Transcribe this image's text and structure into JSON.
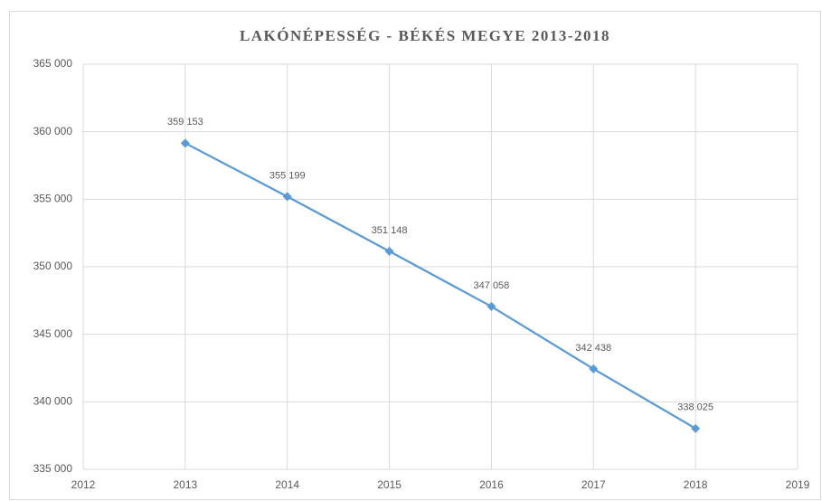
{
  "chart_data": {
    "type": "line",
    "title": "LAKÓNÉPESSÉG - BÉKÉS MEGYE 2013-2018",
    "x": [
      2013,
      2014,
      2015,
      2016,
      2017,
      2018
    ],
    "values": [
      359153,
      355199,
      351148,
      347058,
      342438,
      338025
    ],
    "value_labels": [
      "359 153",
      "355 199",
      "351 148",
      "347 058",
      "342 438",
      "338 025"
    ],
    "color": "#5b9bd5",
    "xlim": [
      2012,
      2019
    ],
    "xticks": [
      2012,
      2013,
      2014,
      2015,
      2016,
      2017,
      2018,
      2019
    ],
    "ylim": [
      335000,
      365000
    ],
    "yticks": [
      {
        "value": 335000,
        "label": "335 000"
      },
      {
        "value": 340000,
        "label": "340 000"
      },
      {
        "value": 345000,
        "label": "345 000"
      },
      {
        "value": 350000,
        "label": "350 000"
      },
      {
        "value": 355000,
        "label": "355 000"
      },
      {
        "value": 360000,
        "label": "360 000"
      },
      {
        "value": 365000,
        "label": "365 000"
      }
    ],
    "grid": true
  }
}
